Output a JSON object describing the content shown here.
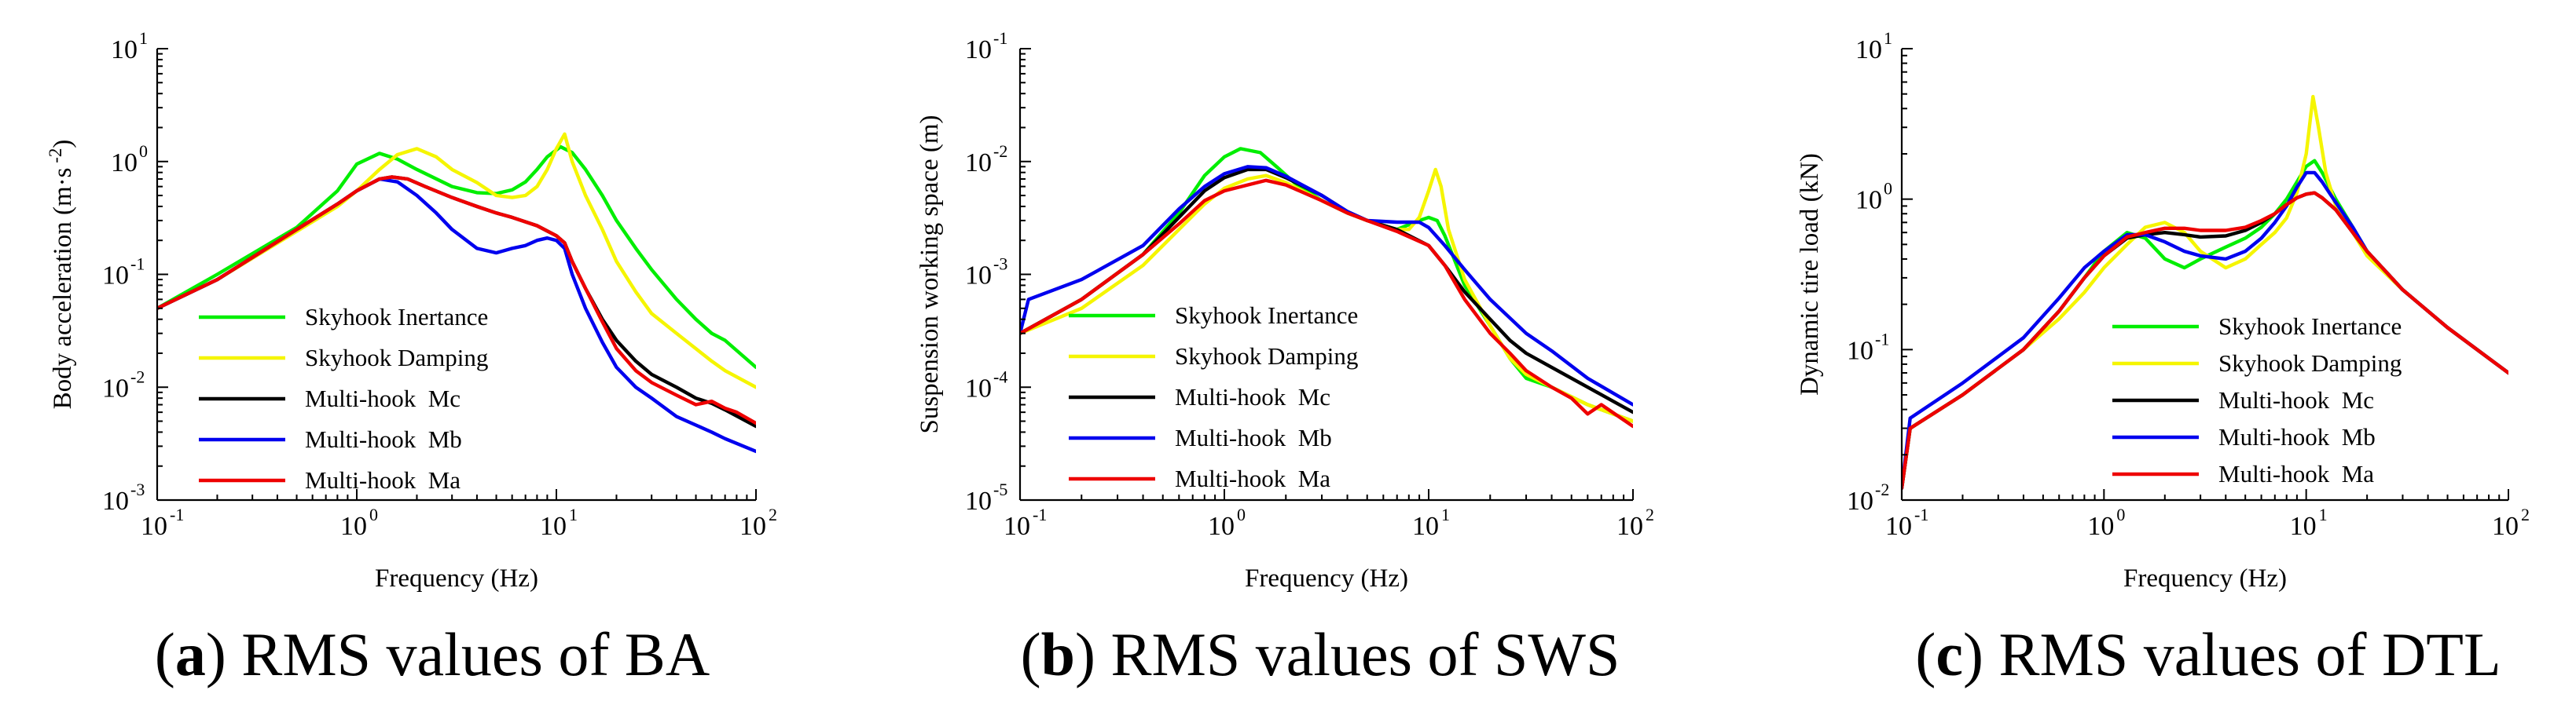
{
  "colors": {
    "Skyhook Inertance": "#00ee00",
    "Skyhook Damping": "#f5f500",
    "Multi-hook  Mc": "#000000",
    "Multi-hook  Mb": "#0000ee",
    "Multi-hook  Ma": "#ee0000"
  },
  "chart_data": [
    {
      "type": "line",
      "panel": "a",
      "caption_letter": "a",
      "caption_text": ") RMS values of BA",
      "xscale": "log",
      "yscale": "log",
      "xlim": [
        0.1,
        100
      ],
      "ylim": [
        0.001,
        10
      ],
      "xlabel": "Frequency (Hz)",
      "ylabel": "Body acceleration (m·s",
      "ylabel_exp": "-2",
      "ylabel_tail": ")",
      "x_ticks": [
        {
          "base": "10",
          "exp": "-1"
        },
        {
          "base": "10",
          "exp": "0"
        },
        {
          "base": "10",
          "exp": "1"
        },
        {
          "base": "10",
          "exp": "2"
        }
      ],
      "y_ticks": [
        {
          "base": "10",
          "exp": "-3"
        },
        {
          "base": "10",
          "exp": "-2"
        },
        {
          "base": "10",
          "exp": "-1"
        },
        {
          "base": "10",
          "exp": "0"
        },
        {
          "base": "10",
          "exp": "1"
        }
      ],
      "legend_position": "lower-left",
      "series": [
        {
          "name": "Skyhook Inertance",
          "x": [
            0.1,
            0.2,
            0.5,
            0.8,
            1.0,
            1.3,
            1.6,
            2.0,
            3.0,
            4.0,
            5.0,
            6.0,
            7.0,
            8.0,
            9.0,
            10.5,
            12,
            14,
            17,
            20,
            25,
            30,
            40,
            50,
            60,
            70,
            100
          ],
          "y": [
            0.05,
            0.1,
            0.26,
            0.55,
            0.95,
            1.18,
            1.05,
            0.85,
            0.6,
            0.53,
            0.52,
            0.56,
            0.66,
            0.85,
            1.1,
            1.35,
            1.2,
            0.85,
            0.5,
            0.3,
            0.17,
            0.11,
            0.06,
            0.04,
            0.03,
            0.026,
            0.015
          ]
        },
        {
          "name": "Skyhook Damping",
          "x": [
            0.1,
            0.2,
            0.5,
            0.8,
            1.0,
            1.3,
            1.6,
            2.0,
            2.5,
            3.0,
            4.0,
            5.0,
            6.0,
            7.0,
            8.0,
            9.0,
            10.0,
            11.0,
            12,
            14,
            17,
            20,
            25,
            30,
            40,
            60,
            70,
            100
          ],
          "y": [
            0.05,
            0.09,
            0.24,
            0.4,
            0.55,
            0.85,
            1.15,
            1.3,
            1.1,
            0.85,
            0.65,
            0.5,
            0.48,
            0.5,
            0.6,
            0.85,
            1.3,
            1.75,
            1.0,
            0.5,
            0.25,
            0.13,
            0.07,
            0.045,
            0.03,
            0.017,
            0.014,
            0.01
          ]
        },
        {
          "name": "Multi-hook  Mc",
          "x": [
            0.1,
            0.2,
            0.5,
            0.8,
            1.0,
            1.3,
            1.5,
            1.8,
            2.2,
            3.0,
            4.0,
            5.0,
            6.0,
            8.0,
            10.0,
            11.0,
            12,
            14,
            17,
            20,
            25,
            30,
            40,
            50,
            60,
            70,
            100
          ],
          "y": [
            0.05,
            0.09,
            0.25,
            0.42,
            0.55,
            0.7,
            0.73,
            0.7,
            0.6,
            0.48,
            0.4,
            0.35,
            0.32,
            0.27,
            0.22,
            0.19,
            0.13,
            0.075,
            0.04,
            0.026,
            0.017,
            0.013,
            0.01,
            0.008,
            0.0072,
            0.0063,
            0.0045
          ]
        },
        {
          "name": "Multi-hook  Mb",
          "x": [
            0.1,
            0.2,
            0.5,
            0.8,
            1.0,
            1.3,
            1.6,
            2.0,
            2.5,
            3.0,
            4.0,
            5.0,
            6.0,
            7.0,
            8.0,
            9.0,
            10.0,
            11.0,
            12,
            14,
            17,
            20,
            25,
            30,
            40,
            60,
            70,
            100
          ],
          "y": [
            0.05,
            0.09,
            0.25,
            0.42,
            0.55,
            0.7,
            0.66,
            0.5,
            0.35,
            0.25,
            0.17,
            0.155,
            0.17,
            0.18,
            0.2,
            0.21,
            0.2,
            0.17,
            0.1,
            0.05,
            0.025,
            0.015,
            0.01,
            0.008,
            0.0055,
            0.004,
            0.0035,
            0.0027
          ]
        },
        {
          "name": "Multi-hook  Ma",
          "x": [
            0.1,
            0.2,
            0.5,
            0.8,
            1.0,
            1.3,
            1.5,
            1.8,
            2.2,
            3.0,
            4.0,
            5.0,
            6.0,
            8.0,
            10.0,
            11.0,
            12,
            14,
            17,
            20,
            25,
            30,
            40,
            50,
            60,
            70,
            80,
            100
          ],
          "y": [
            0.05,
            0.09,
            0.25,
            0.42,
            0.55,
            0.7,
            0.73,
            0.7,
            0.6,
            0.48,
            0.4,
            0.35,
            0.32,
            0.27,
            0.22,
            0.19,
            0.13,
            0.075,
            0.038,
            0.022,
            0.014,
            0.011,
            0.0085,
            0.007,
            0.0075,
            0.0065,
            0.006,
            0.0048
          ]
        }
      ]
    },
    {
      "type": "line",
      "panel": "b",
      "caption_letter": "b",
      "caption_text": ") RMS values of SWS",
      "xscale": "log",
      "yscale": "log",
      "xlim": [
        0.1,
        100
      ],
      "ylim": [
        1e-05,
        0.1
      ],
      "xlabel": "Frequency (Hz)",
      "ylabel": "Suspension working space (m)",
      "ylabel_exp": "",
      "ylabel_tail": "",
      "x_ticks": [
        {
          "base": "10",
          "exp": "-1"
        },
        {
          "base": "10",
          "exp": "0"
        },
        {
          "base": "10",
          "exp": "1"
        },
        {
          "base": "10",
          "exp": "2"
        }
      ],
      "y_ticks": [
        {
          "base": "10",
          "exp": "-5"
        },
        {
          "base": "10",
          "exp": "-4"
        },
        {
          "base": "10",
          "exp": "-3"
        },
        {
          "base": "10",
          "exp": "-2"
        },
        {
          "base": "10",
          "exp": "-1"
        }
      ],
      "legend_position": "lower-left",
      "series": [
        {
          "name": "Skyhook Inertance",
          "x": [
            0.1,
            0.2,
            0.4,
            0.6,
            0.8,
            1.0,
            1.2,
            1.5,
            1.8,
            2.2,
            3.0,
            4.0,
            5.0,
            7.0,
            9.0,
            10.0,
            11.0,
            12,
            15,
            20,
            25,
            30,
            40,
            60,
            100
          ],
          "y": [
            0.0003,
            0.0006,
            0.0015,
            0.0035,
            0.0075,
            0.011,
            0.013,
            0.012,
            0.009,
            0.0065,
            0.0045,
            0.0035,
            0.003,
            0.0025,
            0.003,
            0.0032,
            0.003,
            0.0022,
            0.0008,
            0.00035,
            0.00018,
            0.00012,
            0.0001,
            7e-05,
            5e-05
          ]
        },
        {
          "name": "Skyhook Damping",
          "x": [
            0.1,
            0.2,
            0.4,
            0.6,
            0.8,
            1.0,
            1.3,
            1.6,
            2.0,
            3.0,
            4.0,
            5.0,
            7.0,
            8.0,
            9.0,
            10.0,
            10.8,
            11.5,
            12.5,
            15,
            20,
            25,
            30,
            40,
            60,
            100
          ],
          "y": [
            0.0003,
            0.0005,
            0.0012,
            0.0025,
            0.0042,
            0.0058,
            0.007,
            0.0075,
            0.0065,
            0.0045,
            0.0035,
            0.003,
            0.0025,
            0.0025,
            0.0032,
            0.0055,
            0.0085,
            0.006,
            0.0025,
            0.0009,
            0.00035,
            0.00018,
            0.00013,
            0.0001,
            7e-05,
            5e-05
          ]
        },
        {
          "name": "Multi-hook  Mc",
          "x": [
            0.1,
            0.2,
            0.4,
            0.6,
            0.8,
            1.0,
            1.3,
            1.6,
            2.0,
            3.0,
            4.0,
            5.0,
            7.0,
            10.0,
            12,
            15,
            20,
            25,
            30,
            40,
            60,
            100
          ],
          "y": [
            0.0003,
            0.0006,
            0.0015,
            0.0032,
            0.0055,
            0.0072,
            0.0085,
            0.0085,
            0.0072,
            0.005,
            0.0036,
            0.003,
            0.0025,
            0.0018,
            0.0012,
            0.0007,
            0.0004,
            0.00026,
            0.0002,
            0.00015,
            0.0001,
            6e-05
          ]
        },
        {
          "name": "Multi-hook  Mb",
          "x": [
            0.1,
            0.11,
            0.2,
            0.4,
            0.6,
            0.8,
            1.0,
            1.3,
            1.6,
            2.0,
            3.0,
            4.0,
            5.0,
            7.0,
            9.0,
            10.0,
            12,
            15,
            20,
            30,
            40,
            60,
            100
          ],
          "y": [
            0.0003,
            0.0006,
            0.0009,
            0.0018,
            0.0038,
            0.006,
            0.0078,
            0.009,
            0.0088,
            0.0074,
            0.005,
            0.0036,
            0.003,
            0.0029,
            0.0029,
            0.0026,
            0.0018,
            0.0011,
            0.0006,
            0.0003,
            0.00021,
            0.00012,
            7e-05
          ]
        },
        {
          "name": "Multi-hook  Ma",
          "x": [
            0.1,
            0.2,
            0.4,
            0.6,
            0.8,
            1.0,
            1.3,
            1.6,
            2.0,
            3.0,
            4.0,
            5.0,
            7.0,
            10.0,
            12,
            15,
            20,
            25,
            30,
            40,
            50,
            60,
            70,
            100
          ],
          "y": [
            0.0003,
            0.0006,
            0.0015,
            0.0028,
            0.0045,
            0.0055,
            0.0062,
            0.0068,
            0.0062,
            0.0045,
            0.0035,
            0.003,
            0.0024,
            0.0018,
            0.0012,
            0.0006,
            0.0003,
            0.0002,
            0.00014,
            0.0001,
            8e-05,
            5.8e-05,
            7e-05,
            4.5e-05
          ]
        }
      ]
    },
    {
      "type": "line",
      "panel": "c",
      "caption_letter": "c",
      "caption_text": ") RMS values of DTL",
      "xscale": "log",
      "yscale": "log",
      "xlim": [
        0.1,
        100
      ],
      "ylim": [
        0.01,
        10
      ],
      "xlabel": "Frequency (Hz)",
      "ylabel": "Dynamic tire load (kN)",
      "ylabel_exp": "",
      "ylabel_tail": "",
      "x_ticks": [
        {
          "base": "10",
          "exp": "-1"
        },
        {
          "base": "10",
          "exp": "0"
        },
        {
          "base": "10",
          "exp": "1"
        },
        {
          "base": "10",
          "exp": "2"
        }
      ],
      "y_ticks": [
        {
          "base": "10",
          "exp": "-2"
        },
        {
          "base": "10",
          "exp": "-1"
        },
        {
          "base": "10",
          "exp": "0"
        },
        {
          "base": "10",
          "exp": "1"
        }
      ],
      "legend_position": "lower-left",
      "series": [
        {
          "name": "Skyhook Inertance",
          "x": [
            0.1,
            0.11,
            0.2,
            0.4,
            0.6,
            0.8,
            1.0,
            1.3,
            1.6,
            2.0,
            2.5,
            3.0,
            4.0,
            5.0,
            6.0,
            7.0,
            8.0,
            9.0,
            10.0,
            11.0,
            12,
            14,
            17,
            20,
            30,
            50,
            100
          ],
          "y": [
            0.012,
            0.03,
            0.05,
            0.1,
            0.18,
            0.3,
            0.45,
            0.6,
            0.55,
            0.4,
            0.35,
            0.4,
            0.48,
            0.55,
            0.65,
            0.8,
            1.0,
            1.3,
            1.65,
            1.8,
            1.5,
            1.0,
            0.65,
            0.45,
            0.25,
            0.14,
            0.07
          ]
        },
        {
          "name": "Skyhook Damping",
          "x": [
            0.1,
            0.11,
            0.2,
            0.4,
            0.6,
            0.8,
            1.0,
            1.3,
            1.6,
            2.0,
            2.5,
            3.0,
            4.0,
            5.0,
            6.0,
            7.0,
            8.0,
            9.0,
            10.0,
            10.8,
            11.5,
            12.5,
            14,
            17,
            20,
            30,
            50,
            100
          ],
          "y": [
            0.012,
            0.03,
            0.05,
            0.1,
            0.16,
            0.24,
            0.35,
            0.5,
            0.65,
            0.7,
            0.6,
            0.45,
            0.35,
            0.4,
            0.5,
            0.6,
            0.75,
            1.1,
            2.0,
            4.8,
            3.0,
            1.5,
            0.9,
            0.6,
            0.42,
            0.25,
            0.14,
            0.07
          ]
        },
        {
          "name": "Multi-hook  Mc",
          "x": [
            0.1,
            0.11,
            0.2,
            0.4,
            0.6,
            0.8,
            1.0,
            1.3,
            1.6,
            2.0,
            2.5,
            3.0,
            4.0,
            5.0,
            6.0,
            7.0,
            8.0,
            9.0,
            10.0,
            11.0,
            12,
            14,
            17,
            20,
            30,
            50,
            100
          ],
          "y": [
            0.012,
            0.03,
            0.05,
            0.1,
            0.18,
            0.3,
            0.42,
            0.55,
            0.58,
            0.6,
            0.58,
            0.56,
            0.57,
            0.62,
            0.7,
            0.8,
            0.92,
            1.02,
            1.08,
            1.1,
            1.02,
            0.85,
            0.6,
            0.45,
            0.25,
            0.14,
            0.07
          ]
        },
        {
          "name": "Multi-hook  Mb",
          "x": [
            0.1,
            0.11,
            0.2,
            0.4,
            0.6,
            0.8,
            1.0,
            1.3,
            1.6,
            2.0,
            2.5,
            3.0,
            4.0,
            5.0,
            6.0,
            7.0,
            8.0,
            9.0,
            10.0,
            11.0,
            12,
            14,
            17,
            20,
            30,
            50,
            100
          ],
          "y": [
            0.012,
            0.035,
            0.06,
            0.12,
            0.22,
            0.35,
            0.45,
            0.58,
            0.58,
            0.52,
            0.45,
            0.42,
            0.4,
            0.45,
            0.55,
            0.7,
            0.9,
            1.2,
            1.5,
            1.5,
            1.3,
            0.95,
            0.65,
            0.45,
            0.25,
            0.14,
            0.07
          ]
        },
        {
          "name": "Multi-hook  Ma",
          "x": [
            0.1,
            0.11,
            0.2,
            0.4,
            0.6,
            0.8,
            1.0,
            1.3,
            1.6,
            2.0,
            2.5,
            3.0,
            4.0,
            5.0,
            6.0,
            7.0,
            8.0,
            9.0,
            10.0,
            11.0,
            12,
            14,
            17,
            20,
            30,
            50,
            100
          ],
          "y": [
            0.012,
            0.03,
            0.05,
            0.1,
            0.18,
            0.3,
            0.42,
            0.56,
            0.6,
            0.64,
            0.64,
            0.62,
            0.62,
            0.65,
            0.72,
            0.8,
            0.92,
            1.02,
            1.08,
            1.1,
            1.02,
            0.85,
            0.6,
            0.45,
            0.25,
            0.14,
            0.07
          ]
        }
      ]
    }
  ]
}
